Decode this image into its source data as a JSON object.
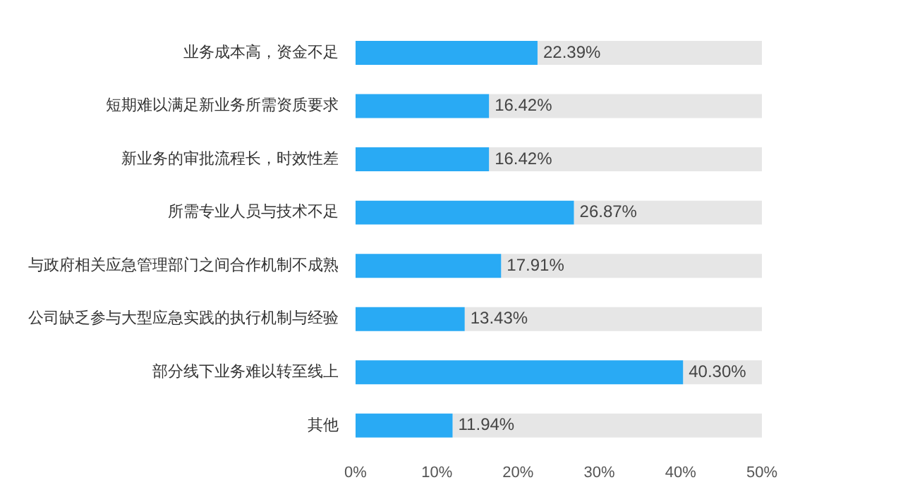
{
  "chart_data": {
    "type": "bar",
    "orientation": "horizontal",
    "categories": [
      "业务成本高，资金不足",
      "短期难以满足新业务所需资质要求",
      "新业务的审批流程长，时效性差",
      "所需专业人员与技术不足",
      "与政府相关应急管理部门之间合作机制不成熟",
      "公司缺乏参与大型应急实践的执行机制与经验",
      "部分线下业务难以转至线上",
      "其他"
    ],
    "series": [
      {
        "color": "#29aaf4",
        "values": [
          22.39,
          16.42,
          16.42,
          26.87,
          17.91,
          13.43,
          40.3,
          11.94
        ],
        "value_labels": [
          "22.39%",
          "16.42%",
          "16.42%",
          "26.87%",
          "17.91%",
          "13.43%",
          "40.30%",
          "11.94%"
        ]
      },
      {
        "color": "#e6e6e6",
        "values": [
          27.61,
          33.58,
          33.58,
          23.13,
          32.09,
          36.57,
          9.7,
          38.06
        ]
      }
    ],
    "xlim": [
      0,
      50
    ],
    "xticks": [
      {
        "value": 0,
        "label": "0%"
      },
      {
        "value": 10,
        "label": "10%"
      },
      {
        "value": 20,
        "label": "20%"
      },
      {
        "value": 30,
        "label": "30%"
      },
      {
        "value": 40,
        "label": "40%"
      },
      {
        "value": 50,
        "label": "50%"
      }
    ],
    "stacked": true,
    "grid": false,
    "legend": false
  }
}
